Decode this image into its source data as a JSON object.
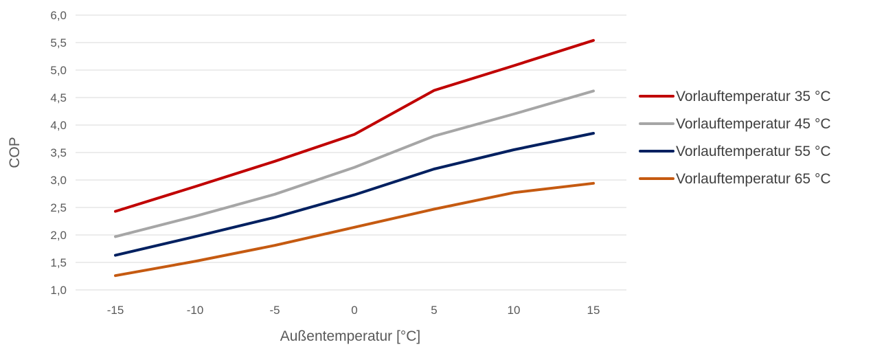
{
  "chart_data": {
    "type": "line",
    "title": "",
    "xlabel": "Außentemperatur [°C]",
    "ylabel": "COP",
    "x": [
      -15,
      -10,
      -5,
      0,
      5,
      10,
      15
    ],
    "x_tick_labels": [
      "-15",
      "-10",
      "-5",
      "0",
      "5",
      "10",
      "15"
    ],
    "ylim": [
      1.0,
      6.0
    ],
    "y_ticks": [
      1.0,
      1.5,
      2.0,
      2.5,
      3.0,
      3.5,
      4.0,
      4.5,
      5.0,
      5.5,
      6.0
    ],
    "y_tick_labels": [
      "1,0",
      "1,5",
      "2,0",
      "2,5",
      "3,0",
      "3,5",
      "4,0",
      "4,5",
      "5,0",
      "5,5",
      "6,0"
    ],
    "grid": true,
    "legend_position": "right",
    "series": [
      {
        "name": "Vorlauftemperatur 35 °C",
        "color": "#c00000",
        "values": [
          2.43,
          2.88,
          3.34,
          3.83,
          4.63,
          5.08,
          5.54
        ]
      },
      {
        "name": "Vorlauftemperatur 45 °C",
        "color": "#a6a6a6",
        "values": [
          1.97,
          2.34,
          2.74,
          3.23,
          3.8,
          4.2,
          4.62
        ]
      },
      {
        "name": "Vorlauftemperatur 55 °C",
        "color": "#002060",
        "values": [
          1.63,
          1.97,
          2.32,
          2.73,
          3.2,
          3.55,
          3.85
        ]
      },
      {
        "name": "Vorlauftemperatur 65 °C",
        "color": "#c55a11",
        "values": [
          1.26,
          1.52,
          1.81,
          2.14,
          2.47,
          2.77,
          2.94
        ]
      }
    ]
  }
}
